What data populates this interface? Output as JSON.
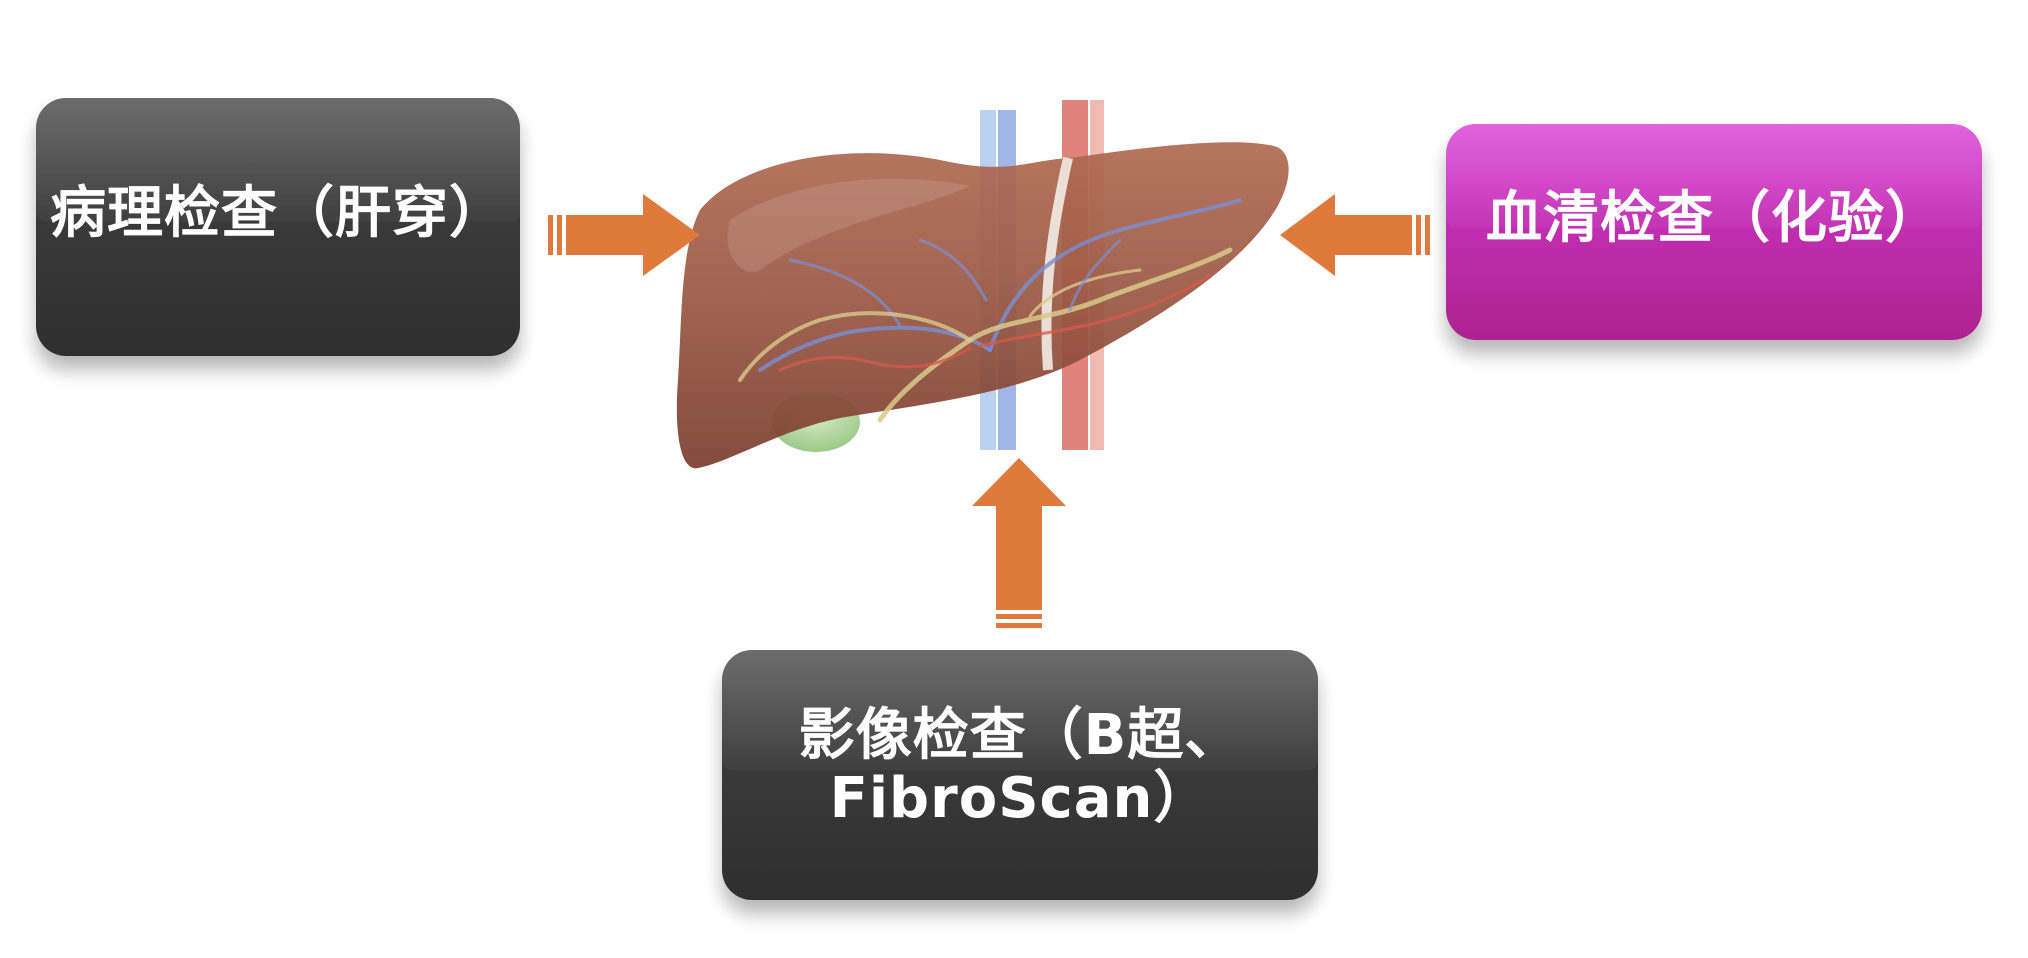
{
  "diagram": {
    "center": {
      "image": "liver-anatomy-illustration"
    },
    "boxes": {
      "left": {
        "label": "病理检查（肝穿）",
        "color": "#3a3a3a"
      },
      "right": {
        "label": "血清检查（化验）",
        "color": "#c22fb3"
      },
      "bottom": {
        "line1": "影像检查（B超、",
        "line2": "FibroScan）",
        "color": "#3a3a3a"
      }
    },
    "arrow_color": "#e07a3c"
  }
}
